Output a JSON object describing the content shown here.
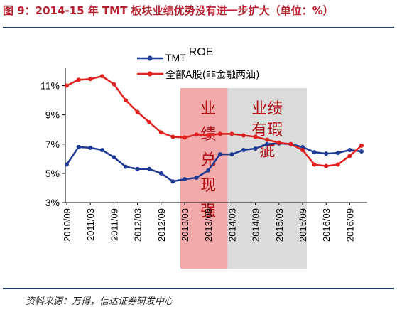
{
  "figure_title": "图 9：2014-15 年 TMT 板块业绩优势没有进一步扩大（单位：%）",
  "source": "资料来源：万得，信达证券研发中心",
  "colors": {
    "tmt": "#1f3a93",
    "all_a": "#e0201f",
    "red_band": "#f3aaaa",
    "grey_band": "#dcdcdc",
    "annotation": "#b01015",
    "title": "#b3202e"
  },
  "chart_data": {
    "type": "line",
    "xlabel": "",
    "ylabel": "",
    "ylim": [
      3,
      12
    ],
    "yticks": [
      "3%",
      "5%",
      "7%",
      "9%",
      "11%"
    ],
    "x_tick_labels": [
      "2010/09",
      "2011/03",
      "2011/09",
      "2012/03",
      "2012/09",
      "2013/03",
      "2013/09",
      "2014/03",
      "2014/09",
      "2015/03",
      "2015/09",
      "2016/03",
      "2016/09"
    ],
    "x": [
      "2010/09",
      "2010/12",
      "2011/03",
      "2011/06",
      "2011/09",
      "2011/12",
      "2012/03",
      "2012/06",
      "2012/09",
      "2012/12",
      "2013/03",
      "2013/06",
      "2013/09",
      "2013/12",
      "2014/03",
      "2014/06",
      "2014/09",
      "2014/12",
      "2015/03",
      "2015/06",
      "2015/09",
      "2015/12",
      "2016/03",
      "2016/06",
      "2016/09",
      "2016/12"
    ],
    "series": [
      {
        "name": "TMT ROE",
        "color": "#1f3a93",
        "values": [
          5.6,
          6.8,
          6.75,
          6.6,
          6.1,
          5.45,
          5.3,
          5.3,
          5.0,
          4.45,
          4.6,
          4.7,
          5.2,
          6.3,
          6.3,
          6.6,
          6.7,
          7.0,
          7.05,
          7.0,
          6.8,
          6.45,
          6.35,
          6.4,
          6.6,
          6.5
        ]
      },
      {
        "name": "全部A股(非金融两油)",
        "color": "#e0201f",
        "values": [
          11.0,
          11.4,
          11.45,
          11.65,
          11.1,
          10.0,
          9.2,
          8.5,
          7.8,
          7.5,
          7.45,
          7.65,
          7.6,
          7.7,
          7.7,
          7.6,
          7.5,
          7.3,
          7.1,
          7.0,
          6.6,
          5.6,
          5.5,
          5.6,
          6.2,
          6.9
        ]
      }
    ],
    "legend_position": "top",
    "grid": false,
    "shaded_regions": [
      {
        "from": "2013/03",
        "to": "2014/03",
        "color": "red",
        "label_lines": [
          "业",
          "绩",
          "兑",
          "现",
          "强"
        ]
      },
      {
        "from": "2014/03",
        "to": "2015/09",
        "color": "grey",
        "label_lines": [
          "业绩",
          "有瑕",
          "疵"
        ]
      }
    ]
  }
}
